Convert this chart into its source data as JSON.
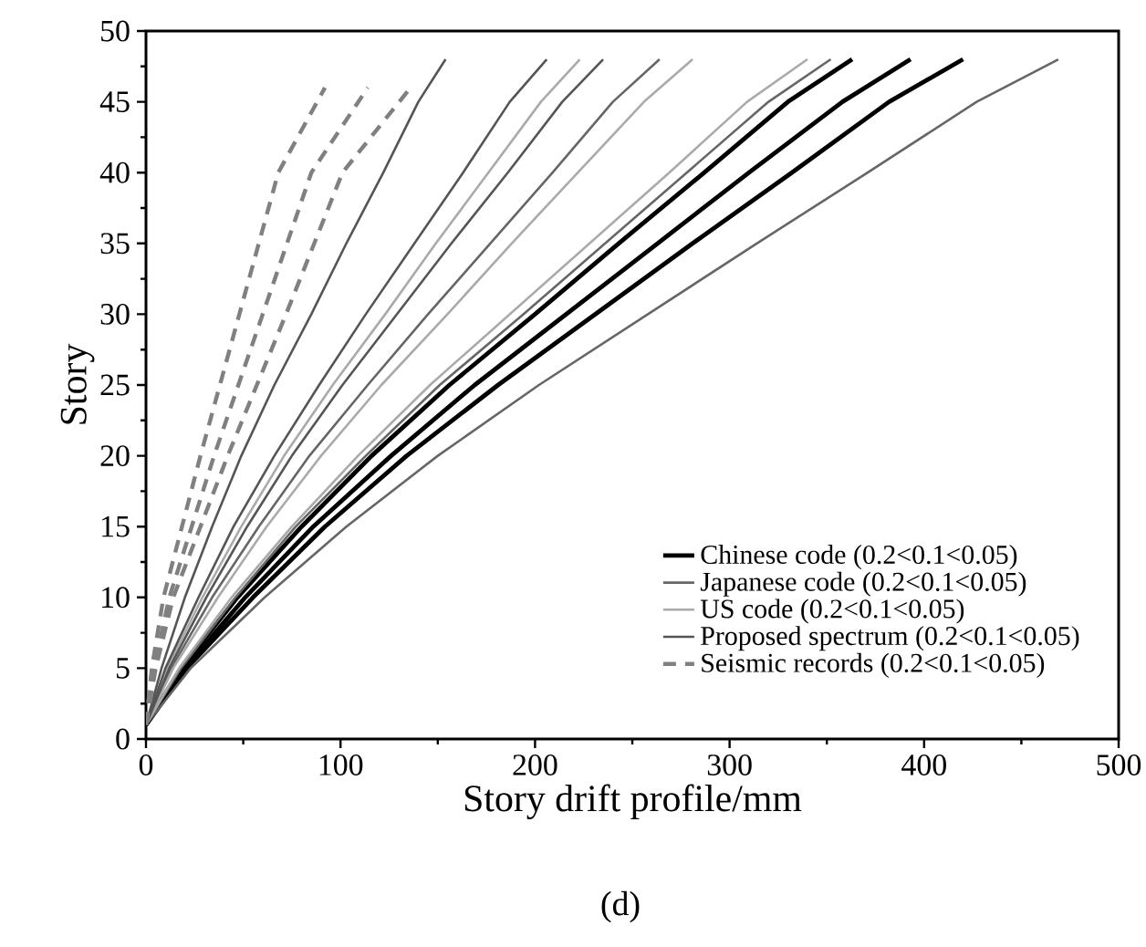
{
  "chart_data": {
    "type": "line",
    "xlabel": "Story drift profile/mm",
    "ylabel": "Story",
    "annotations": [
      "(d)"
    ],
    "xlim": [
      0,
      500
    ],
    "ylim": [
      0,
      50
    ],
    "xticks": [
      0,
      100,
      200,
      300,
      400,
      500
    ],
    "yticks": [
      0,
      5,
      10,
      15,
      20,
      25,
      30,
      35,
      40,
      45,
      50
    ],
    "legend": "bottom right",
    "grid": false,
    "marker": "none",
    "series": [
      {
        "name": "Chinese code (0.2<0.1<0.05)",
        "color": "#000000",
        "line_style": "solid",
        "x": [
          0,
          18,
          47,
          80,
          116,
          156,
          200,
          243,
          287,
          330,
          363
        ],
        "values": [
          1,
          5,
          10,
          15,
          20,
          25,
          30,
          35,
          40,
          45,
          48
        ]
      },
      {
        "color": "#000000",
        "line_style": "solid",
        "x": [
          0,
          20,
          51,
          86,
          126,
          169,
          216,
          263,
          310,
          358,
          393
        ],
        "values": [
          1,
          5,
          10,
          15,
          20,
          25,
          30,
          35,
          40,
          45,
          48
        ]
      },
      {
        "color": "#000000",
        "line_style": "solid",
        "x": [
          0,
          21,
          55,
          92,
          134,
          181,
          231,
          281,
          332,
          382,
          420
        ],
        "values": [
          1,
          5,
          10,
          15,
          20,
          25,
          30,
          35,
          40,
          45,
          48
        ]
      },
      {
        "name": "Japanese code (0.2<0.1<0.05)",
        "color": "#666666",
        "line_style": "solid",
        "x": [
          0,
          23,
          61,
          103,
          150,
          202,
          258,
          314,
          371,
          427,
          469
        ],
        "values": [
          1,
          5,
          10,
          15,
          20,
          25,
          30,
          35,
          40,
          45,
          48
        ]
      },
      {
        "color": "#666666",
        "line_style": "solid",
        "x": [
          0,
          18,
          46,
          77,
          113,
          151,
          194,
          236,
          278,
          320,
          352
        ],
        "values": [
          1,
          5,
          10,
          15,
          20,
          25,
          30,
          35,
          40,
          45,
          48
        ]
      },
      {
        "color": "#666666",
        "line_style": "solid",
        "x": [
          0,
          13,
          34,
          58,
          84,
          114,
          145,
          177,
          209,
          240,
          264
        ],
        "values": [
          1,
          5,
          10,
          15,
          20,
          25,
          30,
          35,
          40,
          45,
          48
        ]
      },
      {
        "name": "US code (0.2<0.1<0.05)",
        "color": "#aaaaaa",
        "line_style": "solid",
        "x": [
          0,
          17,
          44,
          75,
          109,
          146,
          187,
          228,
          269,
          309,
          340
        ],
        "values": [
          1,
          5,
          10,
          15,
          20,
          25,
          30,
          35,
          40,
          45,
          48
        ]
      },
      {
        "color": "#aaaaaa",
        "line_style": "solid",
        "x": [
          0,
          14,
          37,
          62,
          90,
          121,
          155,
          188,
          222,
          256,
          281
        ],
        "values": [
          1,
          5,
          10,
          15,
          20,
          25,
          30,
          35,
          40,
          45,
          48
        ]
      },
      {
        "color": "#aaaaaa",
        "line_style": "solid",
        "x": [
          0,
          11,
          29,
          49,
          71,
          96,
          123,
          149,
          176,
          203,
          223
        ],
        "values": [
          1,
          5,
          10,
          15,
          20,
          25,
          30,
          35,
          40,
          45,
          48
        ]
      },
      {
        "name": "Proposed spectrum (0.2<0.1<0.05)",
        "color": "#555555",
        "line_style": "solid",
        "x": [
          0,
          12,
          31,
          52,
          75,
          101,
          129,
          157,
          186,
          214,
          235
        ],
        "values": [
          1,
          5,
          10,
          15,
          20,
          25,
          30,
          35,
          40,
          45,
          48
        ]
      },
      {
        "color": "#555555",
        "line_style": "solid",
        "x": [
          0,
          10,
          27,
          45,
          66,
          89,
          113,
          138,
          163,
          187,
          206
        ],
        "values": [
          1,
          5,
          10,
          15,
          20,
          25,
          30,
          35,
          40,
          45,
          48
        ]
      },
      {
        "color": "#555555",
        "line_style": "solid",
        "x": [
          0,
          8,
          20,
          34,
          49,
          66,
          85,
          103,
          122,
          140,
          154
        ],
        "values": [
          1,
          5,
          10,
          15,
          20,
          25,
          30,
          35,
          40,
          45,
          48
        ]
      },
      {
        "name": "Seismic records (0.2<0.1<0.05)",
        "color": "#808080",
        "line_style": "dashed",
        "x": [
          0,
          3,
          9,
          28,
          48,
          68,
          92
        ],
        "values": [
          1,
          5,
          10,
          20,
          30,
          40,
          46
        ]
      },
      {
        "color": "#808080",
        "line_style": "dashed",
        "x": [
          0,
          4,
          12,
          35,
          60,
          85,
          114
        ],
        "values": [
          1,
          5,
          10,
          20,
          30,
          40,
          46
        ]
      },
      {
        "color": "#808080",
        "line_style": "dashed",
        "x": [
          0,
          5,
          14,
          42,
          72,
          101,
          136
        ],
        "values": [
          1,
          5,
          10,
          20,
          30,
          40,
          46
        ]
      }
    ]
  }
}
